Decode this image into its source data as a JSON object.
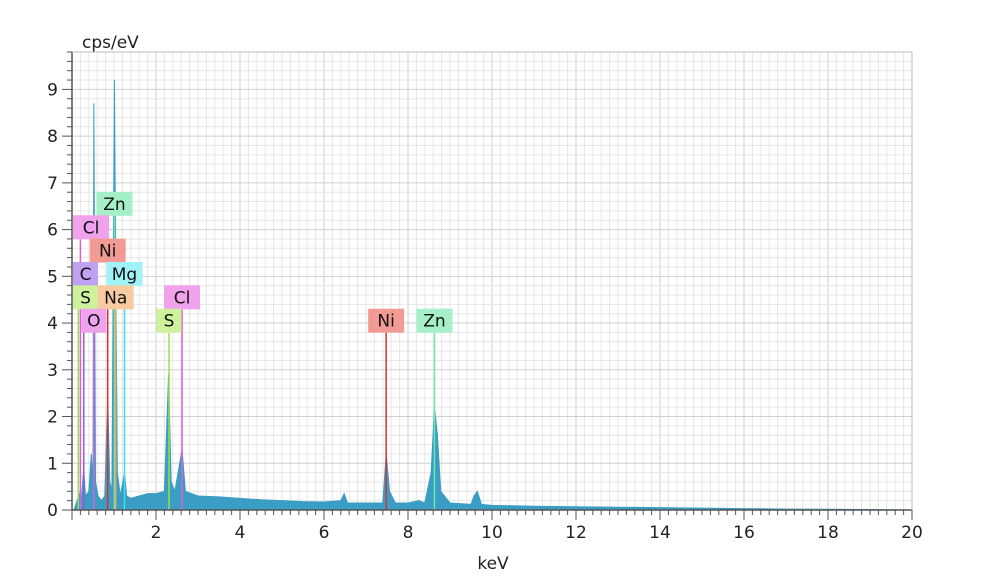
{
  "chart_data": {
    "type": "area",
    "title": "",
    "ylabel": "cps/eV",
    "xlabel": "keV",
    "xlim": [
      0,
      20
    ],
    "ylim": [
      0,
      9.8
    ],
    "x_ticks": [
      2,
      4,
      6,
      8,
      10,
      12,
      14,
      16,
      18,
      20
    ],
    "y_ticks": [
      0,
      1,
      2,
      3,
      4,
      5,
      6,
      7,
      8,
      9
    ],
    "grid": true,
    "spectrum_color": "#3a9dc4",
    "series": [
      {
        "values": [
          {
            "x": 0.05,
            "y": 0.0
          },
          {
            "x": 0.12,
            "y": 0.2
          },
          {
            "x": 0.18,
            "y": 0.35
          },
          {
            "x": 0.22,
            "y": 0.2
          },
          {
            "x": 0.28,
            "y": 0.9
          },
          {
            "x": 0.32,
            "y": 0.3
          },
          {
            "x": 0.4,
            "y": 0.4
          },
          {
            "x": 0.46,
            "y": 1.2
          },
          {
            "x": 0.5,
            "y": 0.5
          },
          {
            "x": 0.52,
            "y": 8.7
          },
          {
            "x": 0.56,
            "y": 0.6
          },
          {
            "x": 0.62,
            "y": 0.3
          },
          {
            "x": 0.7,
            "y": 0.2
          },
          {
            "x": 0.78,
            "y": 0.3
          },
          {
            "x": 0.85,
            "y": 2.4
          },
          {
            "x": 0.9,
            "y": 0.6
          },
          {
            "x": 0.95,
            "y": 0.4
          },
          {
            "x": 1.01,
            "y": 9.2
          },
          {
            "x": 1.04,
            "y": 5.3
          },
          {
            "x": 1.08,
            "y": 0.8
          },
          {
            "x": 1.15,
            "y": 0.3
          },
          {
            "x": 1.25,
            "y": 0.8
          },
          {
            "x": 1.3,
            "y": 0.3
          },
          {
            "x": 1.4,
            "y": 0.25
          },
          {
            "x": 1.6,
            "y": 0.3
          },
          {
            "x": 1.8,
            "y": 0.35
          },
          {
            "x": 2.0,
            "y": 0.35
          },
          {
            "x": 2.2,
            "y": 0.4
          },
          {
            "x": 2.3,
            "y": 2.9
          },
          {
            "x": 2.36,
            "y": 0.6
          },
          {
            "x": 2.45,
            "y": 0.4
          },
          {
            "x": 2.62,
            "y": 1.3
          },
          {
            "x": 2.7,
            "y": 0.4
          },
          {
            "x": 3.0,
            "y": 0.3
          },
          {
            "x": 3.5,
            "y": 0.28
          },
          {
            "x": 4.0,
            "y": 0.25
          },
          {
            "x": 4.5,
            "y": 0.22
          },
          {
            "x": 5.0,
            "y": 0.2
          },
          {
            "x": 5.5,
            "y": 0.18
          },
          {
            "x": 6.0,
            "y": 0.17
          },
          {
            "x": 6.4,
            "y": 0.2
          },
          {
            "x": 6.48,
            "y": 0.35
          },
          {
            "x": 6.56,
            "y": 0.15
          },
          {
            "x": 7.0,
            "y": 0.15
          },
          {
            "x": 7.4,
            "y": 0.15
          },
          {
            "x": 7.48,
            "y": 1.2
          },
          {
            "x": 7.56,
            "y": 0.4
          },
          {
            "x": 7.7,
            "y": 0.15
          },
          {
            "x": 8.0,
            "y": 0.15
          },
          {
            "x": 8.26,
            "y": 0.2
          },
          {
            "x": 8.4,
            "y": 0.15
          },
          {
            "x": 8.55,
            "y": 0.8
          },
          {
            "x": 8.63,
            "y": 2.2
          },
          {
            "x": 8.7,
            "y": 1.6
          },
          {
            "x": 8.78,
            "y": 0.4
          },
          {
            "x": 9.0,
            "y": 0.15
          },
          {
            "x": 9.5,
            "y": 0.12
          },
          {
            "x": 9.57,
            "y": 0.3
          },
          {
            "x": 9.65,
            "y": 0.4
          },
          {
            "x": 9.75,
            "y": 0.12
          },
          {
            "x": 10.0,
            "y": 0.1
          },
          {
            "x": 11.0,
            "y": 0.08
          },
          {
            "x": 12.0,
            "y": 0.07
          },
          {
            "x": 13.0,
            "y": 0.06
          },
          {
            "x": 14.0,
            "y": 0.05
          },
          {
            "x": 15.0,
            "y": 0.04
          },
          {
            "x": 16.0,
            "y": 0.03
          },
          {
            "x": 17.0,
            "y": 0.02
          },
          {
            "x": 18.0,
            "y": 0.015
          },
          {
            "x": 19.0,
            "y": 0.01
          },
          {
            "x": 20.0,
            "y": 0.0
          }
        ]
      }
    ],
    "element_lines": [
      {
        "label": "Zn",
        "energy": 1.01,
        "label_y": 6.55,
        "color": "#6fe8a8",
        "bg": "#a6f0c9"
      },
      {
        "label": "Cl",
        "energy": 0.2,
        "label_y": 6.05,
        "color": "#e55ad6",
        "bg": "#f1a2ec"
      },
      {
        "label": "Ni",
        "energy": 0.85,
        "label_y": 5.55,
        "color": "#d9302c",
        "bg": "#f29b95"
      },
      {
        "label": "C",
        "energy": 0.28,
        "label_y": 5.05,
        "color": "#8f5ce0",
        "bg": "#c0a2f2"
      },
      {
        "label": "Mg",
        "energy": 1.25,
        "label_y": 5.05,
        "color": "#3ae0e8",
        "bg": "#9ff2f6"
      },
      {
        "label": "S",
        "energy": 0.15,
        "label_y": 4.55,
        "color": "#9ede4a",
        "bg": "#cef29b"
      },
      {
        "label": "Na",
        "energy": 1.04,
        "label_y": 4.55,
        "color": "#f0a35a",
        "bg": "#f7cb9f"
      },
      {
        "label": "Cl",
        "energy": 2.62,
        "label_y": 4.55,
        "color": "#e55ad6",
        "bg": "#f1a2ec"
      },
      {
        "label": "O",
        "energy": 0.52,
        "label_y": 4.05,
        "color": "#e55ad6",
        "bg": "#f1a2ec"
      },
      {
        "label": "S",
        "energy": 2.31,
        "label_y": 4.05,
        "color": "#9ede4a",
        "bg": "#cef29b"
      },
      {
        "label": "Ni",
        "energy": 7.48,
        "label_y": 4.05,
        "color": "#d9302c",
        "bg": "#f29b95"
      },
      {
        "label": "Zn",
        "energy": 8.63,
        "label_y": 4.05,
        "color": "#6fe8a8",
        "bg": "#a6f0c9"
      }
    ]
  }
}
